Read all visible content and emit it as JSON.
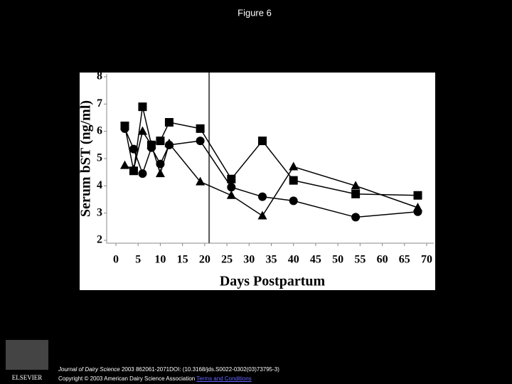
{
  "slide_title": "Figure 6",
  "chart_data": {
    "type": "line",
    "y_label": "Serum bST (ng/ml)",
    "x_label": "Days Postpartum",
    "x": [
      2,
      4,
      6,
      8,
      10,
      12,
      19,
      26,
      33,
      40,
      54,
      68
    ],
    "series": [
      {
        "marker": "square",
        "color": "#000000",
        "values": [
          6.2,
          4.55,
          6.9,
          5.5,
          5.65,
          6.33,
          6.1,
          4.25,
          5.65,
          4.2,
          3.7,
          3.65
        ]
      },
      {
        "marker": "circle",
        "color": "#000000",
        "values": [
          6.1,
          5.35,
          4.45,
          5.4,
          4.8,
          5.5,
          5.65,
          3.95,
          3.6,
          3.45,
          2.85,
          3.05
        ]
      },
      {
        "marker": "triangle",
        "color": "#000000",
        "values": [
          4.75,
          4.6,
          6.0,
          5.5,
          4.45,
          5.55,
          4.15,
          3.65,
          2.9,
          4.7,
          4.0,
          3.2
        ]
      }
    ],
    "vline": 21,
    "xlim": [
      0,
      70
    ],
    "xticks": [
      0,
      5,
      10,
      15,
      20,
      25,
      30,
      35,
      40,
      45,
      50,
      55,
      60,
      65,
      70
    ],
    "ylim": [
      2,
      8
    ],
    "yticks": [
      2,
      3,
      4,
      5,
      6,
      7,
      8
    ]
  },
  "footer": {
    "journal": "Journal of Dairy Science",
    "citation": "2003 862061-2071DOI: (10.3168/jds.S0022-0302(03)73795-3)",
    "copyright": "Copyright © 2003 American Dairy Science Association",
    "link": "Terms and Conditions",
    "logo": "ELSEVIER"
  }
}
